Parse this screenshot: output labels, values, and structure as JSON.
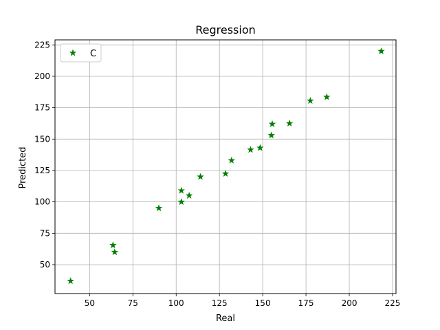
{
  "chart_data": {
    "type": "scatter",
    "title": "Regression",
    "xlabel": "Real",
    "ylabel": "Predicted",
    "xlim": [
      30,
      227
    ],
    "ylim": [
      27,
      229
    ],
    "xticks": [
      50,
      75,
      100,
      125,
      150,
      175,
      200,
      225
    ],
    "yticks": [
      50,
      75,
      100,
      125,
      150,
      175,
      200,
      225
    ],
    "grid": true,
    "legend_position": "upper-left",
    "series": [
      {
        "name": "C",
        "color": "#008000",
        "marker": "star",
        "points": [
          [
            39,
            37
          ],
          [
            63.5,
            65.5
          ],
          [
            64.5,
            60
          ],
          [
            90,
            95
          ],
          [
            103,
            109
          ],
          [
            103,
            100
          ],
          [
            107.5,
            105
          ],
          [
            114,
            120
          ],
          [
            128.5,
            122.5
          ],
          [
            132,
            133
          ],
          [
            143,
            141.5
          ],
          [
            148.5,
            143
          ],
          [
            155,
            153
          ],
          [
            155.5,
            162
          ],
          [
            165.5,
            162.5
          ],
          [
            177.5,
            180.5
          ],
          [
            187,
            183.5
          ],
          [
            218.5,
            220
          ]
        ]
      }
    ]
  }
}
